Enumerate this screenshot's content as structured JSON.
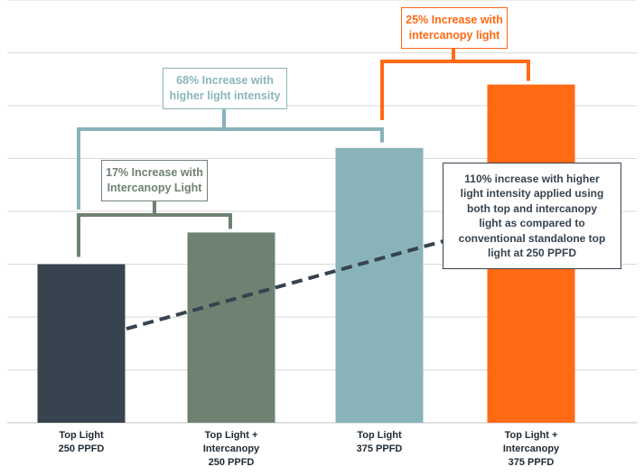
{
  "chart_data": {
    "type": "bar",
    "categories": [
      [
        "Top Light",
        "250 PPFD"
      ],
      [
        "Top Light +",
        "Intercanopy",
        "250 PPFD"
      ],
      [
        "Top Light",
        "375 PPFD"
      ],
      [
        "Top Light +",
        "Intercanopy",
        "375 PPFD"
      ]
    ],
    "values": [
      3.0,
      3.6,
      5.2,
      6.4
    ],
    "ylim": [
      0,
      8
    ],
    "grid": true,
    "colors": [
      "#37434f",
      "#6f8272",
      "#88b3b9",
      "#ff6a13"
    ],
    "annotations": {
      "intercanopy_250": [
        "17% Increase with",
        "Intercanopy Light"
      ],
      "intensity": [
        "68% Increase with",
        "higher light intensity"
      ],
      "intercanopy_375": [
        "25% Increase with",
        "intercanopy light"
      ],
      "summary": [
        "110% increase with higher",
        "light intensity applied using",
        "both top and intercanopy",
        "light as compared to",
        "conventional standalone top",
        "light at 250 PPFD"
      ]
    }
  }
}
